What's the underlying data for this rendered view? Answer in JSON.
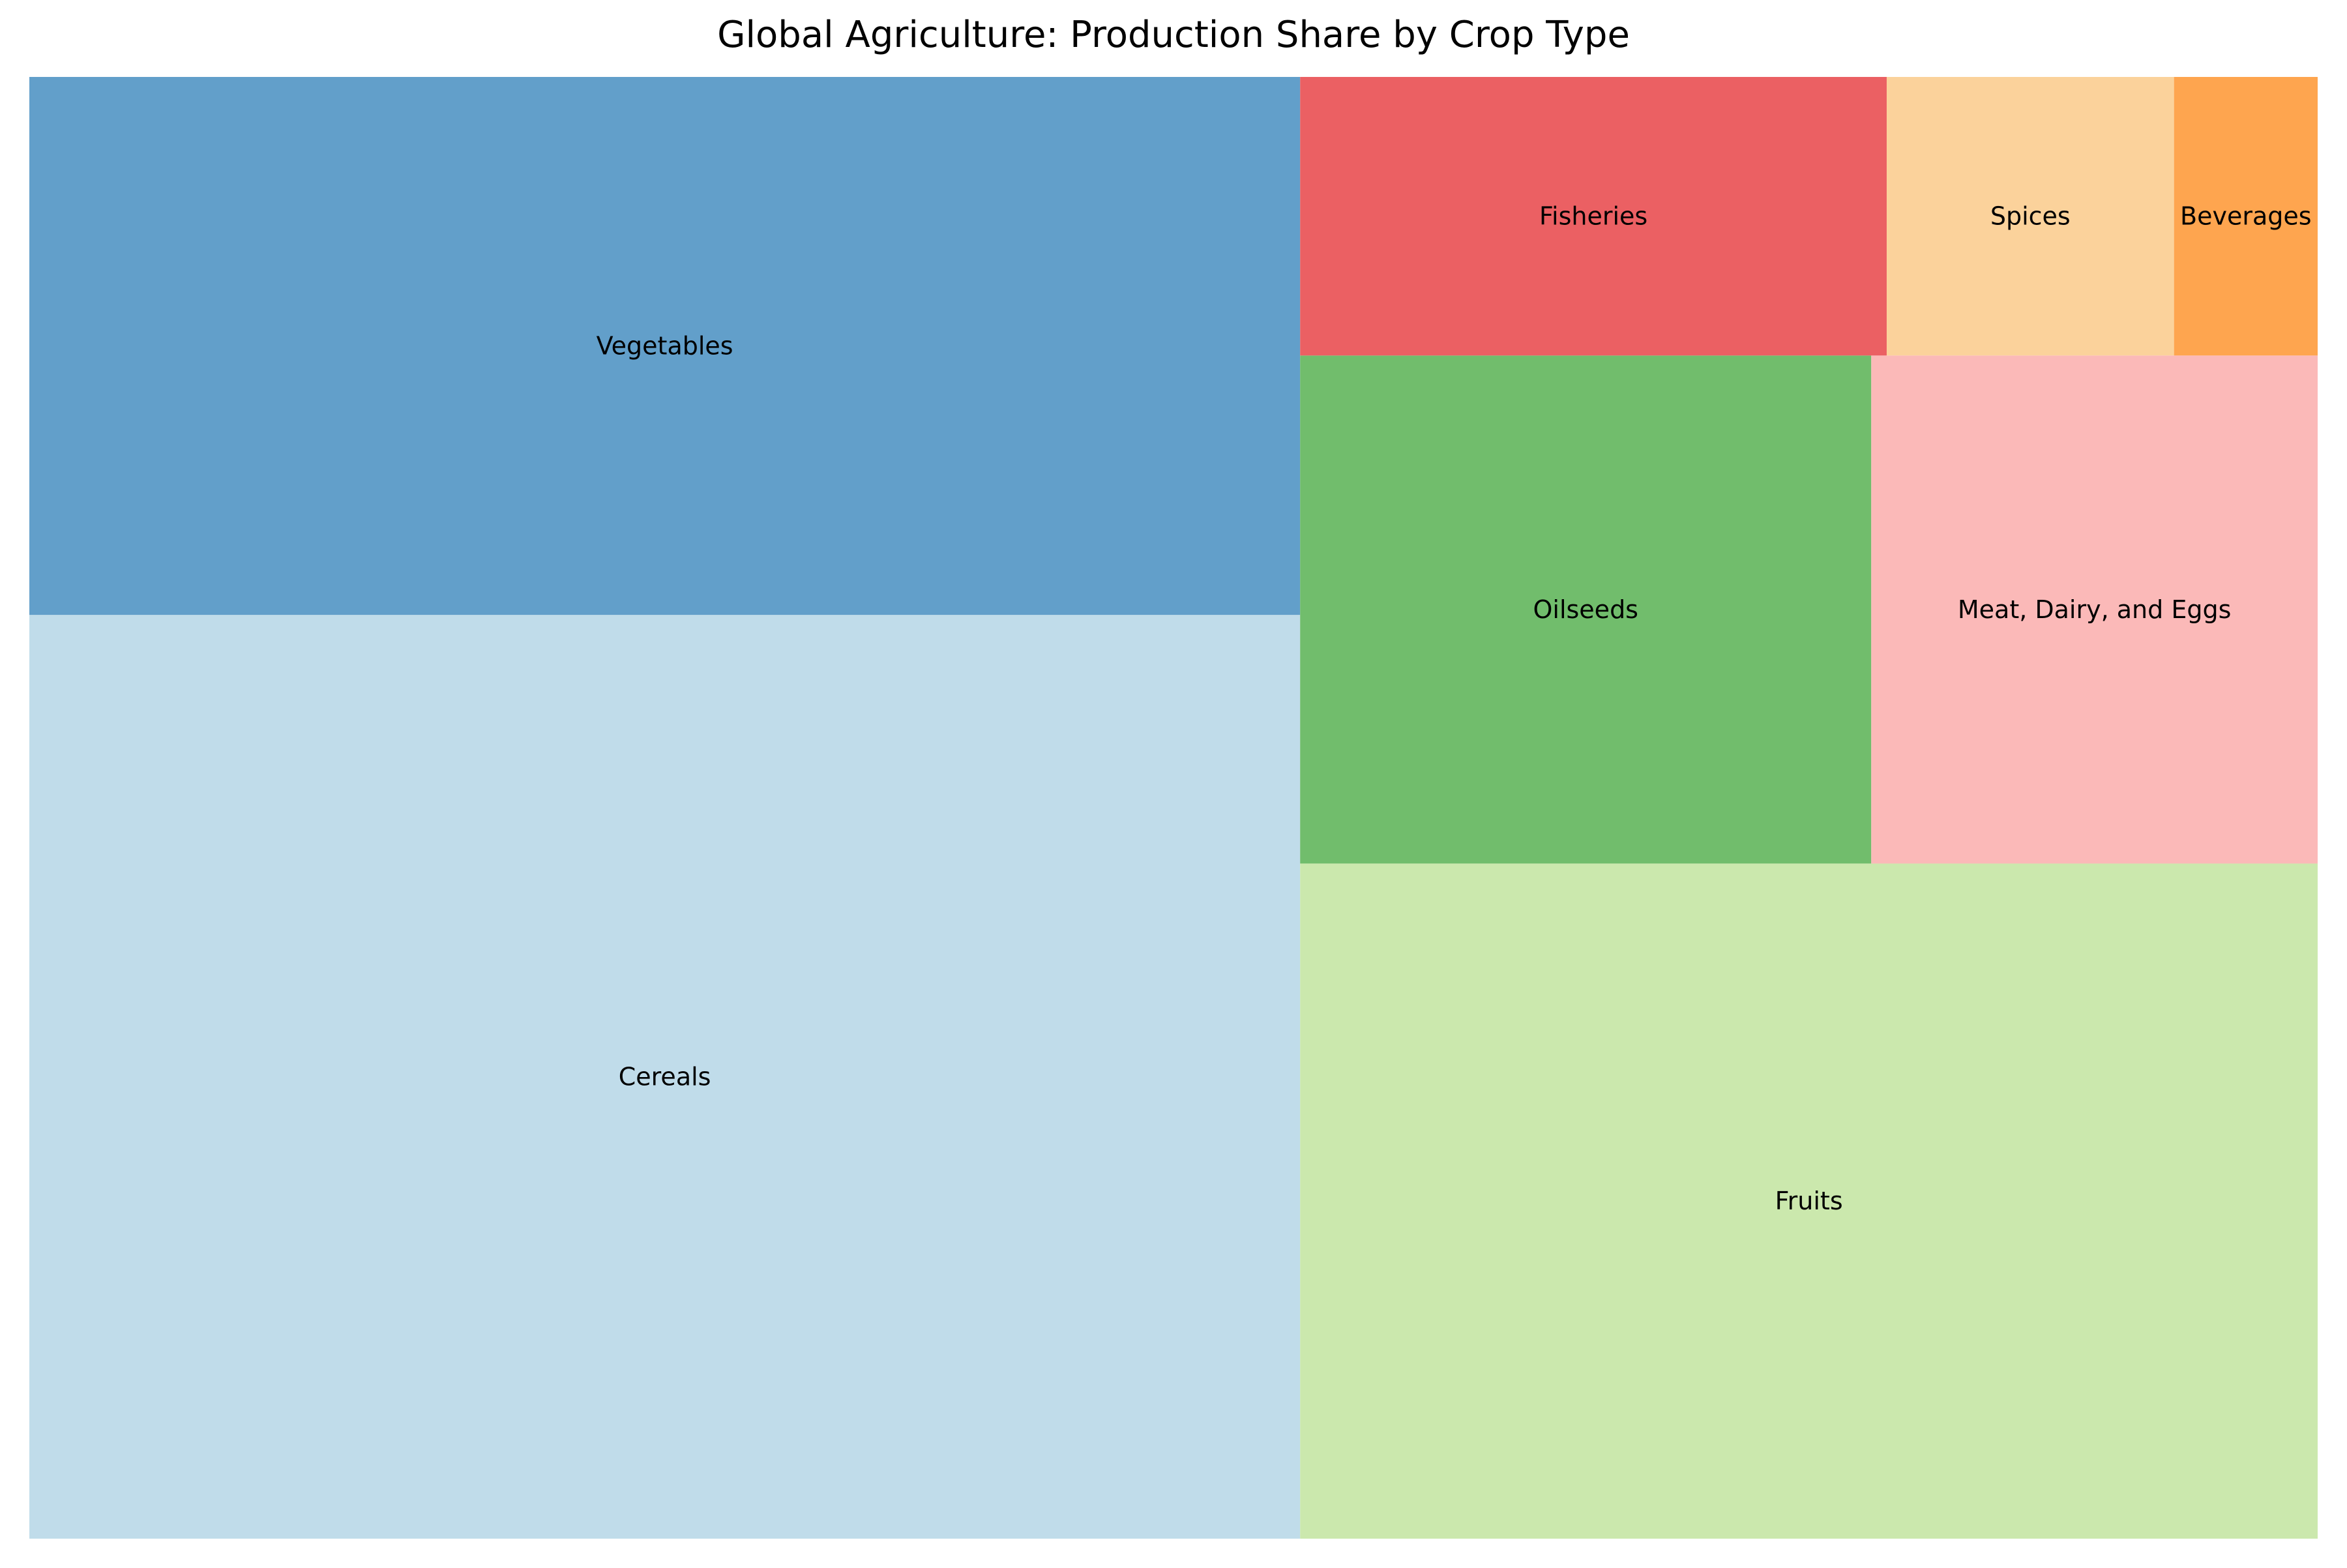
{
  "chart_data": {
    "type": "treemap",
    "title": "Global Agriculture: Production Share by Crop Type",
    "xlabel": "",
    "ylabel": "",
    "grid": false,
    "axes_visible": false,
    "categories": [
      "Cereals",
      "Vegetables",
      "Fruits",
      "Oilseeds",
      "Meat, Dairy, and Eggs",
      "Fisheries",
      "Spices",
      "Beverages"
    ],
    "values": [
      35.2,
      20.5,
      20.6,
      8.7,
      6.8,
      4.9,
      2.4,
      1.2
    ],
    "colors": [
      "#c0dcea",
      "#629fca",
      "#cbe8ad",
      "#71bd6c",
      "#fbb9b8",
      "#eb6063",
      "#fbd29b",
      "#fea54f"
    ],
    "tiles": [
      {
        "label": "Cereals",
        "value": 35.2,
        "color": "#c0dcea"
      },
      {
        "label": "Vegetables",
        "value": 20.5,
        "color": "#629fca"
      },
      {
        "label": "Fruits",
        "value": 20.6,
        "color": "#cbe8ad"
      },
      {
        "label": "Oilseeds",
        "value": 8.7,
        "color": "#71bd6c"
      },
      {
        "label": "Meat, Dairy, and Eggs",
        "value": 6.8,
        "color": "#fbb9b8"
      },
      {
        "label": "Fisheries",
        "value": 4.9,
        "color": "#eb6063"
      },
      {
        "label": "Spices",
        "value": 2.4,
        "color": "#fbd29b"
      },
      {
        "label": "Beverages",
        "value": 1.2,
        "color": "#fea54f"
      }
    ]
  }
}
